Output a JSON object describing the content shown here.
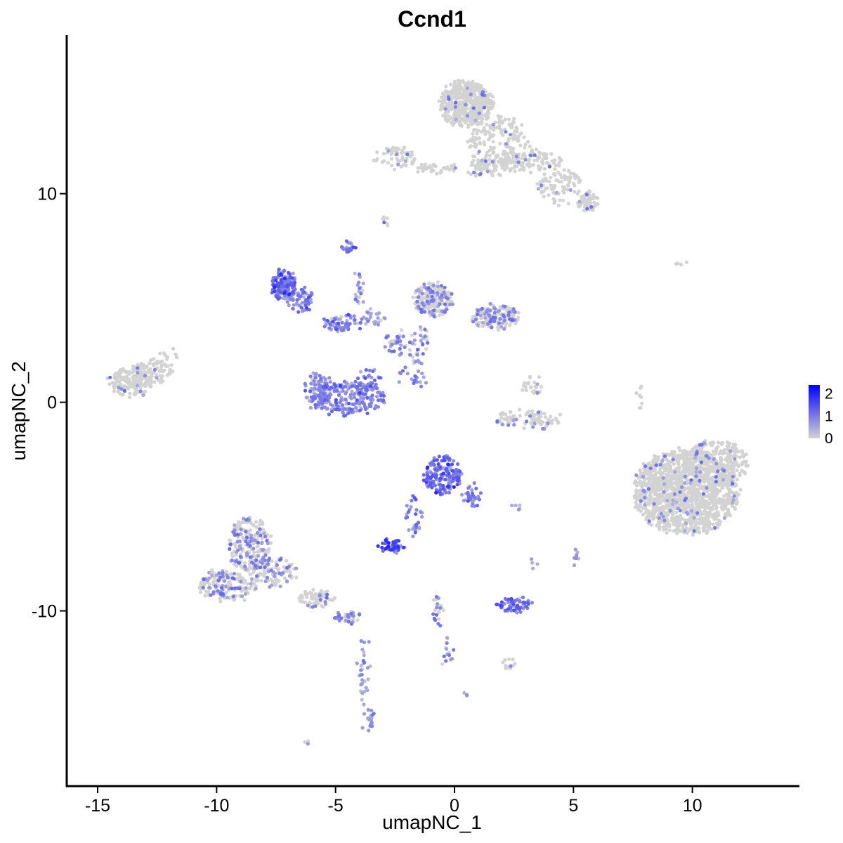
{
  "chart_data": {
    "type": "scatter",
    "title": "Ccnd1",
    "xlabel": "umapNC_1",
    "ylabel": "umapNC_2",
    "xlim": [
      -16.3,
      14.5
    ],
    "ylim": [
      -18.4,
      17.6
    ],
    "x_ticks": [
      -15,
      -10,
      -5,
      0,
      5,
      10
    ],
    "y_ticks": [
      -10,
      0,
      10
    ],
    "grid": false,
    "legend": {
      "placement": "right",
      "type": "colorbar",
      "range": [
        0,
        2.4
      ],
      "ticks": [
        0,
        1,
        2
      ],
      "low_color": "#d3d3d3",
      "high_color": "#0000ff"
    },
    "clusters": [
      {
        "cx": 0.5,
        "cy": 14.3,
        "rx": 1.1,
        "ry": 1.1,
        "n": 520,
        "expr": 0.02
      },
      {
        "cx": 1.8,
        "cy": 12.3,
        "rx": 1.3,
        "ry": 1.4,
        "n": 200,
        "expr": 0.02
      },
      {
        "cx": 3.0,
        "cy": 11.6,
        "rx": 1.5,
        "ry": 0.5,
        "n": 110,
        "expr": 0.02
      },
      {
        "cx": 4.4,
        "cy": 10.4,
        "rx": 0.9,
        "ry": 0.9,
        "n": 90,
        "expr": 0.02
      },
      {
        "cx": 5.6,
        "cy": 9.6,
        "rx": 0.4,
        "ry": 0.5,
        "n": 70,
        "expr": 0.02
      },
      {
        "cx": -2.5,
        "cy": 11.7,
        "rx": 0.9,
        "ry": 0.5,
        "n": 60,
        "expr": 0.05
      },
      {
        "cx": -0.8,
        "cy": 11.2,
        "rx": 0.9,
        "ry": 0.2,
        "n": 35,
        "expr": 0.02
      },
      {
        "cx": 1.0,
        "cy": 11.2,
        "rx": 0.4,
        "ry": 0.4,
        "n": 30,
        "expr": 0.02
      },
      {
        "cx": -2.9,
        "cy": 8.8,
        "rx": 0.2,
        "ry": 0.3,
        "n": 8,
        "expr": 0.05
      },
      {
        "cx": -7.2,
        "cy": 5.6,
        "rx": 0.5,
        "ry": 0.7,
        "n": 160,
        "expr": 1.2
      },
      {
        "cx": -6.5,
        "cy": 4.9,
        "rx": 0.5,
        "ry": 0.6,
        "n": 60,
        "expr": 1.0
      },
      {
        "cx": -4.7,
        "cy": 3.8,
        "rx": 0.8,
        "ry": 0.4,
        "n": 70,
        "expr": 0.9
      },
      {
        "cx": -4.4,
        "cy": 7.4,
        "rx": 0.3,
        "ry": 0.3,
        "n": 25,
        "expr": 1.0
      },
      {
        "cx": -4.0,
        "cy": 5.6,
        "rx": 0.2,
        "ry": 1.0,
        "n": 20,
        "expr": 0.6
      },
      {
        "cx": -3.4,
        "cy": 4.0,
        "rx": 0.5,
        "ry": 0.4,
        "n": 25,
        "expr": 0.6
      },
      {
        "cx": -2.4,
        "cy": 2.8,
        "rx": 0.6,
        "ry": 0.6,
        "n": 40,
        "expr": 0.3
      },
      {
        "cx": -0.9,
        "cy": 4.9,
        "rx": 0.8,
        "ry": 0.8,
        "n": 210,
        "expr": 0.12
      },
      {
        "cx": 1.7,
        "cy": 4.1,
        "rx": 1.0,
        "ry": 0.6,
        "n": 150,
        "expr": 0.12
      },
      {
        "cx": -1.5,
        "cy": 2.7,
        "rx": 0.4,
        "ry": 1.0,
        "n": 40,
        "expr": 0.2
      },
      {
        "cx": -4.6,
        "cy": 0.2,
        "rx": 1.6,
        "ry": 0.8,
        "n": 240,
        "expr": 1.0
      },
      {
        "cx": -5.8,
        "cy": 0.8,
        "rx": 0.5,
        "ry": 0.6,
        "n": 50,
        "expr": 0.9
      },
      {
        "cx": -3.6,
        "cy": 1.0,
        "rx": 0.5,
        "ry": 0.6,
        "n": 40,
        "expr": 0.9
      },
      {
        "cx": -1.8,
        "cy": 1.2,
        "rx": 0.7,
        "ry": 0.5,
        "n": 20,
        "expr": 0.4
      },
      {
        "cx": -13.6,
        "cy": 1.0,
        "rx": 0.9,
        "ry": 0.7,
        "n": 170,
        "expr": 0.02
      },
      {
        "cx": -12.7,
        "cy": 1.5,
        "rx": 0.8,
        "ry": 0.6,
        "n": 80,
        "expr": 0.02
      },
      {
        "cx": -12.0,
        "cy": 2.3,
        "rx": 0.4,
        "ry": 0.3,
        "n": 8,
        "expr": 0.02
      },
      {
        "cx": 3.3,
        "cy": 0.8,
        "rx": 0.4,
        "ry": 0.5,
        "n": 25,
        "expr": 0.02
      },
      {
        "cx": 3.0,
        "cy": -0.8,
        "rx": 1.4,
        "ry": 0.4,
        "n": 90,
        "expr": 0.05
      },
      {
        "cx": 9.7,
        "cy": -4.3,
        "rx": 2.2,
        "ry": 2.0,
        "n": 1400,
        "expr": 0.02
      },
      {
        "cx": 11.0,
        "cy": -3.0,
        "rx": 1.3,
        "ry": 1.2,
        "n": 300,
        "expr": 0.02
      },
      {
        "cx": 7.8,
        "cy": 0.2,
        "rx": 0.1,
        "ry": 0.7,
        "n": 8,
        "expr": 0.02
      },
      {
        "cx": 9.6,
        "cy": 6.7,
        "rx": 0.3,
        "ry": 0.1,
        "n": 4,
        "expr": 0.02
      },
      {
        "cx": -0.5,
        "cy": -3.5,
        "rx": 0.8,
        "ry": 0.9,
        "n": 170,
        "expr": 1.2
      },
      {
        "cx": 0.7,
        "cy": -4.5,
        "rx": 0.4,
        "ry": 0.6,
        "n": 30,
        "expr": 1.0
      },
      {
        "cx": -1.7,
        "cy": -5.5,
        "rx": 0.4,
        "ry": 1.0,
        "n": 30,
        "expr": 1.2
      },
      {
        "cx": -2.6,
        "cy": -6.9,
        "rx": 0.5,
        "ry": 0.3,
        "n": 55,
        "expr": 1.6
      },
      {
        "cx": -8.6,
        "cy": -6.8,
        "rx": 0.9,
        "ry": 1.3,
        "n": 230,
        "expr": 0.12
      },
      {
        "cx": -9.6,
        "cy": -8.8,
        "rx": 1.2,
        "ry": 0.7,
        "n": 170,
        "expr": 0.12
      },
      {
        "cx": -7.6,
        "cy": -8.1,
        "rx": 1.0,
        "ry": 0.7,
        "n": 110,
        "expr": 0.12
      },
      {
        "cx": -5.8,
        "cy": -9.4,
        "rx": 0.8,
        "ry": 0.4,
        "n": 60,
        "expr": 0.08
      },
      {
        "cx": -4.5,
        "cy": -10.3,
        "rx": 0.5,
        "ry": 0.3,
        "n": 40,
        "expr": 0.3
      },
      {
        "cx": -3.8,
        "cy": -12.9,
        "rx": 0.2,
        "ry": 1.7,
        "n": 30,
        "expr": 0.6
      },
      {
        "cx": -3.6,
        "cy": -15.2,
        "rx": 0.2,
        "ry": 0.6,
        "n": 20,
        "expr": 0.8
      },
      {
        "cx": 2.5,
        "cy": -9.7,
        "rx": 0.7,
        "ry": 0.3,
        "n": 65,
        "expr": 1.2
      },
      {
        "cx": -0.7,
        "cy": -10.0,
        "rx": 0.2,
        "ry": 0.8,
        "n": 25,
        "expr": 0.2
      },
      {
        "cx": -0.3,
        "cy": -12.0,
        "rx": 0.2,
        "ry": 0.9,
        "n": 15,
        "expr": 0.3
      },
      {
        "cx": 2.3,
        "cy": -12.5,
        "rx": 0.3,
        "ry": 0.2,
        "n": 15,
        "expr": 0.02
      },
      {
        "cx": 5.1,
        "cy": -7.5,
        "rx": 0.1,
        "ry": 0.4,
        "n": 8,
        "expr": 0.8
      },
      {
        "cx": 2.7,
        "cy": -5.0,
        "rx": 0.3,
        "ry": 0.1,
        "n": 5,
        "expr": 0.6
      },
      {
        "cx": 3.3,
        "cy": -7.7,
        "rx": 0.1,
        "ry": 0.3,
        "n": 4,
        "expr": 0.6
      },
      {
        "cx": 0.5,
        "cy": -14.0,
        "rx": 0.1,
        "ry": 0.1,
        "n": 3,
        "expr": 0.6
      },
      {
        "cx": -6.1,
        "cy": -16.3,
        "rx": 0.1,
        "ry": 0.1,
        "n": 3,
        "expr": 0.1
      }
    ]
  }
}
